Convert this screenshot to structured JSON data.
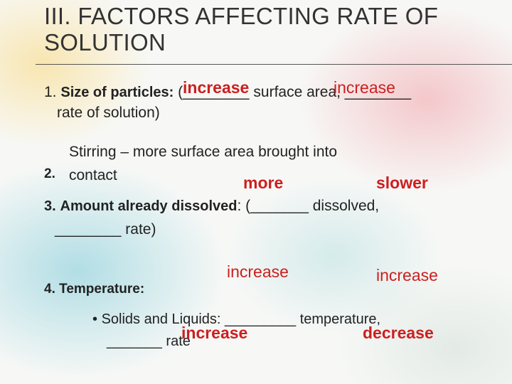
{
  "title": "III. FACTORS AFFECTING RATE OF SOLUTION",
  "item1": {
    "number": "1.",
    "label": "Size of particles:",
    "text_a": "(________ surface area, ________",
    "text_b": "rate of solution)",
    "answer_1": "increase",
    "answer_2": "increase"
  },
  "item2": {
    "number": "2.",
    "line_1": "Stirring – more surface area brought into",
    "line_2": "contact"
  },
  "item3": {
    "number": "3.",
    "label": "Amount already dissolved",
    "text_a": ": (_______ dissolved,",
    "text_b": "________ rate)",
    "answer_1": "more",
    "answer_2": "slower"
  },
  "item4": {
    "number": "4.",
    "label": "Temperature:",
    "answer_1": "increase",
    "answer_2": "increase",
    "bullet": "•",
    "sub_text_a": "Solids and Liquids: _________ temperature,",
    "sub_text_b": "_______ rate",
    "sub_answer_1": "increase",
    "sub_answer_2": "decrease"
  },
  "colors": {
    "answer": "#cc1f1f",
    "text": "#222222"
  }
}
